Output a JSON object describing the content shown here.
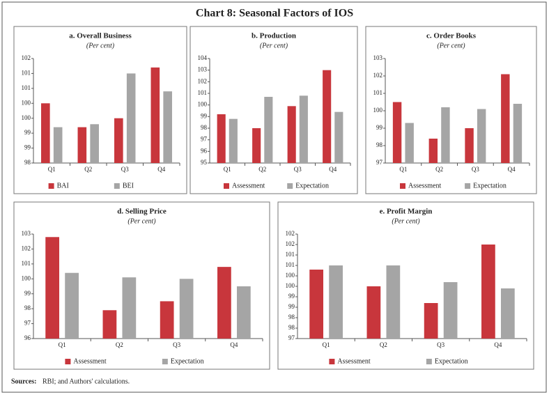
{
  "title": "Chart 8: Seasonal Factors of IOS",
  "chart_data": [
    {
      "type": "bar",
      "title": "a. Overall Business",
      "subtitle": "(Per cent)",
      "categories": [
        "Q1",
        "Q2",
        "Q3",
        "Q4"
      ],
      "series": [
        {
          "name": "BAI",
          "color": "#c8363c",
          "values": [
            100.0,
            99.2,
            99.5,
            101.2
          ]
        },
        {
          "name": "BEI",
          "color": "#a5a5a5",
          "values": [
            99.2,
            99.3,
            101.0,
            100.4
          ]
        }
      ],
      "ylim": [
        98,
        101.5
      ],
      "yticks": [
        98,
        {
          "value": 98.5,
          "label": "99"
        },
        99,
        {
          "value": 99.5,
          "label": "100"
        },
        100,
        {
          "value": 100.5,
          "label": "101"
        },
        101,
        {
          "value": 101.5,
          "label": "102"
        }
      ]
    },
    {
      "type": "bar",
      "title": "b. Production",
      "subtitle": "(Per cent)",
      "categories": [
        "Q1",
        "Q2",
        "Q3",
        "Q4"
      ],
      "series": [
        {
          "name": "Assessment",
          "color": "#c8363c",
          "values": [
            99.2,
            98.0,
            99.9,
            103.0
          ]
        },
        {
          "name": "Expectation",
          "color": "#a5a5a5",
          "values": [
            98.8,
            100.7,
            100.8,
            99.4
          ]
        }
      ],
      "ylim": [
        95,
        104
      ],
      "yticks": [
        95,
        96,
        97,
        98,
        99,
        100,
        101,
        102,
        103,
        104
      ]
    },
    {
      "type": "bar",
      "title": "c. Order Books",
      "subtitle": "(Per cent)",
      "categories": [
        "Q1",
        "Q2",
        "Q3",
        "Q4"
      ],
      "series": [
        {
          "name": "Assessment",
          "color": "#c8363c",
          "values": [
            100.5,
            98.4,
            99.0,
            102.1
          ]
        },
        {
          "name": "Expectation",
          "color": "#a5a5a5",
          "values": [
            99.3,
            100.2,
            100.1,
            100.4
          ]
        }
      ],
      "ylim": [
        97,
        103
      ],
      "yticks": [
        97,
        98,
        99,
        100,
        101,
        102,
        103
      ]
    },
    {
      "type": "bar",
      "title": "d. Selling Price",
      "subtitle": "(Per cent)",
      "categories": [
        "Q1",
        "Q2",
        "Q3",
        "Q4"
      ],
      "series": [
        {
          "name": "Assessment",
          "color": "#c8363c",
          "values": [
            102.8,
            97.9,
            98.5,
            100.8
          ]
        },
        {
          "name": "Expectation",
          "color": "#a5a5a5",
          "values": [
            100.4,
            100.1,
            100.0,
            99.5
          ]
        }
      ],
      "ylim": [
        96,
        103
      ],
      "yticks": [
        96,
        97,
        98,
        99,
        100,
        101,
        102,
        103
      ]
    },
    {
      "type": "bar",
      "title": "e. Profit Margin",
      "subtitle": "(Per cent)",
      "categories": [
        "Q1",
        "Q2",
        "Q3",
        "Q4"
      ],
      "series": [
        {
          "name": "Assessment",
          "color": "#c8363c",
          "values": [
            100.3,
            99.5,
            98.7,
            101.5
          ]
        },
        {
          "name": "Expectation",
          "color": "#a5a5a5",
          "values": [
            100.5,
            100.5,
            99.7,
            99.4
          ]
        }
      ],
      "ylim": [
        97,
        102
      ],
      "yticks": [
        97,
        {
          "value": 97.5,
          "label": "98"
        },
        98,
        {
          "value": 98.5,
          "label": "99"
        },
        99,
        {
          "value": 99.5,
          "label": "100"
        },
        100,
        {
          "value": 100.5,
          "label": "101"
        },
        101,
        {
          "value": 101.5,
          "label": "102"
        },
        102
      ]
    }
  ],
  "sources_label": "Sources:",
  "sources_text": "RBI; and Authors' calculations."
}
